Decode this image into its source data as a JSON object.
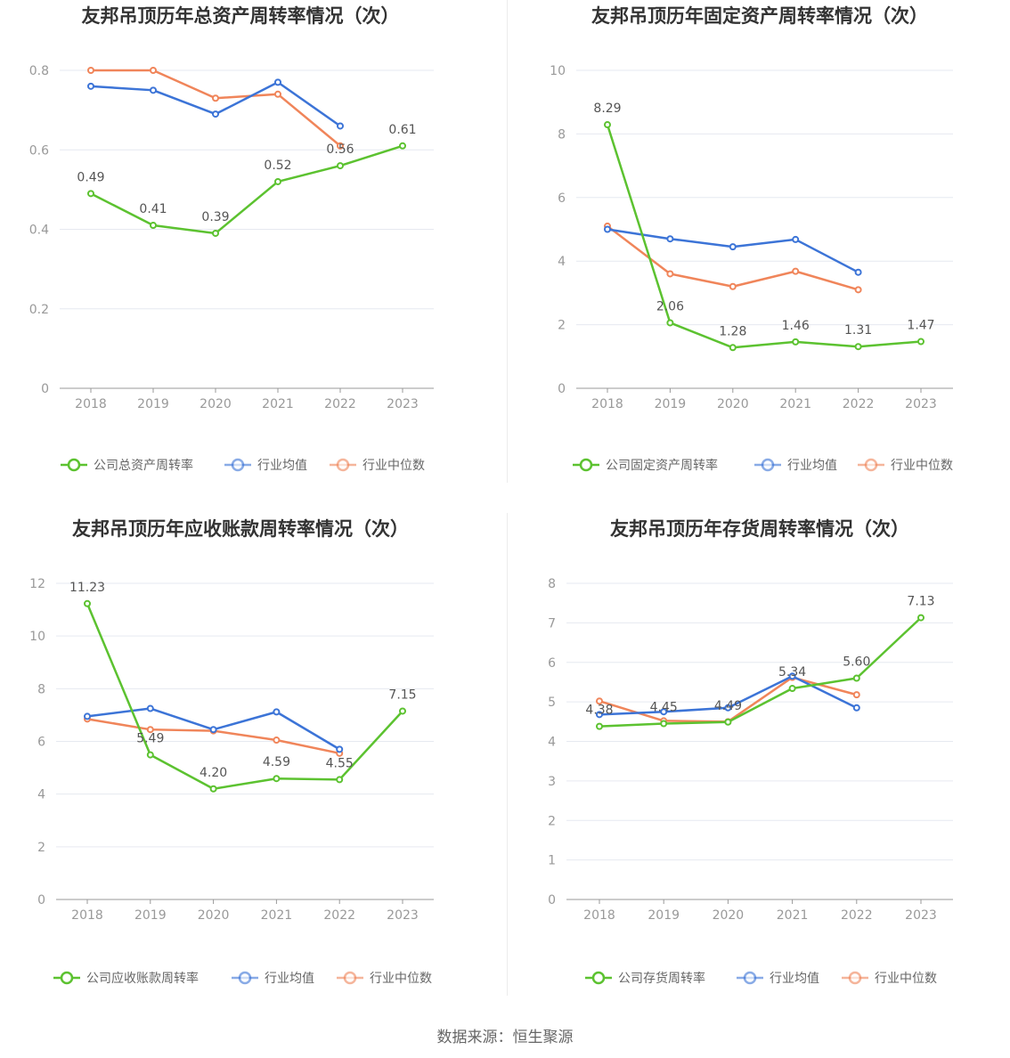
{
  "source": "数据来源：恒生聚源",
  "colors": {
    "company": "#5cc230",
    "avg": "#3c74d7",
    "median": "#f0855a",
    "grid": "#e6e9f0",
    "axis": "#999999"
  },
  "chart_data": [
    {
      "type": "line",
      "title": "友邦吊顶历年总资产周转率情况（次）",
      "categories": [
        "2018",
        "2019",
        "2020",
        "2021",
        "2022",
        "2023"
      ],
      "ylim": [
        0,
        0.8
      ],
      "yticks": [
        0,
        0.2,
        0.4,
        0.6,
        0.8
      ],
      "ytick_labels": [
        "0",
        "0.2",
        "0.4",
        "0.6",
        "0.8"
      ],
      "series": [
        {
          "name": "公司总资产周转率",
          "role": "company",
          "values": [
            0.49,
            0.41,
            0.39,
            0.52,
            0.56,
            0.61
          ],
          "labels": [
            "0.49",
            "0.41",
            "0.39",
            "0.52",
            "0.56",
            "0.61"
          ]
        },
        {
          "name": "行业均值",
          "role": "avg",
          "values": [
            0.76,
            0.75,
            0.69,
            0.77,
            0.66,
            null
          ]
        },
        {
          "name": "行业中位数",
          "role": "median",
          "values": [
            0.8,
            0.8,
            0.73,
            0.74,
            0.61,
            null
          ]
        }
      ]
    },
    {
      "type": "line",
      "title": "友邦吊顶历年固定资产周转率情况（次）",
      "categories": [
        "2018",
        "2019",
        "2020",
        "2021",
        "2022",
        "2023"
      ],
      "ylim": [
        0,
        10
      ],
      "yticks": [
        0,
        2,
        4,
        6,
        8,
        10
      ],
      "ytick_labels": [
        "0",
        "2",
        "4",
        "6",
        "8",
        "10"
      ],
      "series": [
        {
          "name": "公司固定资产周转率",
          "role": "company",
          "values": [
            8.29,
            2.06,
            1.28,
            1.46,
            1.31,
            1.47
          ],
          "labels": [
            "8.29",
            "2.06",
            "1.28",
            "1.46",
            "1.31",
            "1.47"
          ]
        },
        {
          "name": "行业均值",
          "role": "avg",
          "values": [
            5.0,
            4.7,
            4.45,
            4.68,
            3.65,
            null
          ]
        },
        {
          "name": "行业中位数",
          "role": "median",
          "values": [
            5.1,
            3.6,
            3.2,
            3.68,
            3.1,
            null
          ]
        }
      ]
    },
    {
      "type": "line",
      "title": "友邦吊顶历年应收账款周转率情况（次）",
      "categories": [
        "2018",
        "2019",
        "2020",
        "2021",
        "2022",
        "2023"
      ],
      "ylim": [
        0,
        12
      ],
      "yticks": [
        0,
        2,
        4,
        6,
        8,
        10,
        12
      ],
      "ytick_labels": [
        "0",
        "2",
        "4",
        "6",
        "8",
        "10",
        "12"
      ],
      "series": [
        {
          "name": "公司应收账款周转率",
          "role": "company",
          "values": [
            11.23,
            5.49,
            4.2,
            4.59,
            4.55,
            7.15
          ],
          "labels": [
            "11.23",
            "5.49",
            "4.20",
            "4.59",
            "4.55",
            "7.15"
          ]
        },
        {
          "name": "行业均值",
          "role": "avg",
          "values": [
            6.95,
            7.25,
            6.45,
            7.12,
            5.7,
            null
          ]
        },
        {
          "name": "行业中位数",
          "role": "median",
          "values": [
            6.85,
            6.45,
            6.4,
            6.05,
            5.55,
            null
          ]
        }
      ]
    },
    {
      "type": "line",
      "title": "友邦吊顶历年存货周转率情况（次）",
      "categories": [
        "2018",
        "2019",
        "2020",
        "2021",
        "2022",
        "2023"
      ],
      "ylim": [
        0,
        8
      ],
      "yticks": [
        0,
        1,
        2,
        3,
        4,
        5,
        6,
        7,
        8
      ],
      "ytick_labels": [
        "0",
        "1",
        "2",
        "3",
        "4",
        "5",
        "6",
        "7",
        "8"
      ],
      "series": [
        {
          "name": "公司存货周转率",
          "role": "company",
          "values": [
            4.38,
            4.45,
            4.49,
            5.34,
            5.6,
            7.13
          ],
          "labels": [
            "4.38",
            "4.45",
            "4.49",
            "5.34",
            "5.60",
            "7.13"
          ]
        },
        {
          "name": "行业均值",
          "role": "avg",
          "values": [
            4.68,
            4.75,
            4.85,
            5.65,
            4.85,
            null
          ]
        },
        {
          "name": "行业中位数",
          "role": "median",
          "values": [
            5.02,
            4.52,
            4.5,
            5.62,
            5.18,
            null
          ]
        }
      ]
    }
  ]
}
